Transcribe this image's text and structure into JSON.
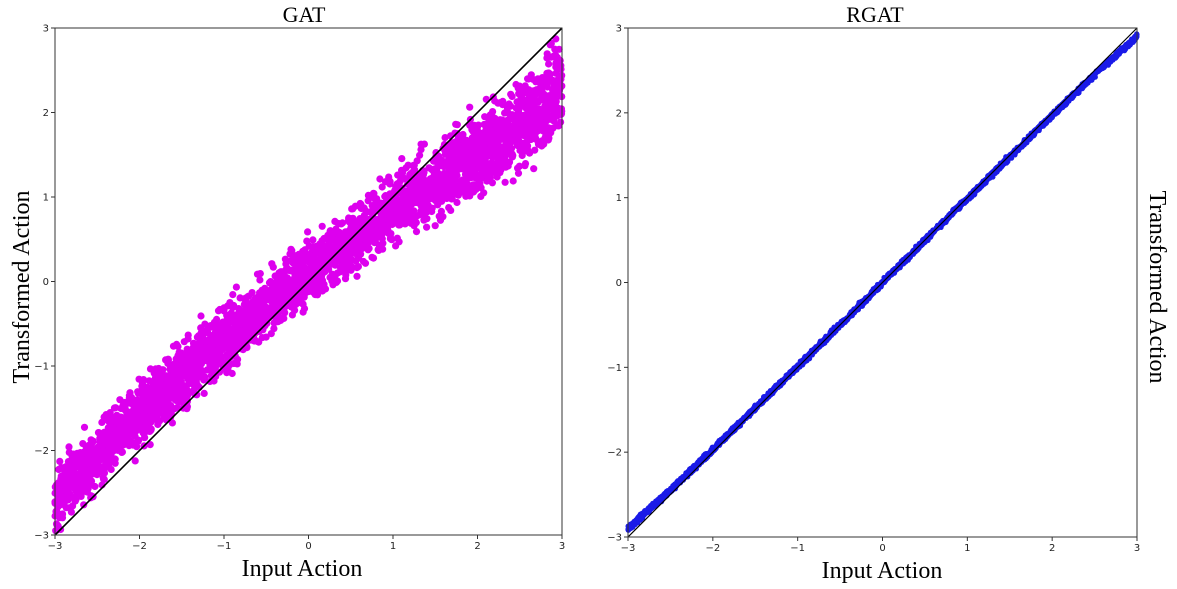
{
  "colors": {
    "gat_points": "#dd00ee",
    "rgat_points": "#1a1ae8",
    "identity_line": "#000000"
  },
  "panels": [
    {
      "key": "gat",
      "title": "GAT",
      "xlabel": "Input Action",
      "ylabel": "Transformed Action",
      "ylabel_side": "left"
    },
    {
      "key": "rgat",
      "title": "RGAT",
      "xlabel": "Input Action",
      "ylabel": "Transformed Action",
      "ylabel_side": "right"
    }
  ],
  "chart_data": [
    {
      "type": "scatter",
      "title": "GAT",
      "xlabel": "Input Action",
      "ylabel": "Transformed Action",
      "xlim": [
        -3,
        3
      ],
      "ylim": [
        -3,
        3
      ],
      "xticks": [
        "−3",
        "−2",
        "−1",
        "0",
        "1",
        "2",
        "3"
      ],
      "yticks": [
        "−3",
        "−2",
        "−1",
        "0",
        "1",
        "2",
        "3"
      ],
      "reference_line": {
        "x": [
          -3,
          3
        ],
        "y": [
          -3,
          3
        ]
      },
      "grid": false,
      "x": [
        -3.0,
        -2.8,
        -2.6,
        -2.4,
        -2.2,
        -2.0,
        -1.8,
        -1.6,
        -1.4,
        -1.2,
        -1.0,
        -0.8,
        -0.6,
        -0.4,
        -0.2,
        0.0,
        0.2,
        0.4,
        0.6,
        0.8,
        1.0,
        1.2,
        1.4,
        1.6,
        1.8,
        2.0,
        2.2,
        2.4,
        2.6,
        2.8,
        3.0
      ],
      "y": [
        -2.6,
        -2.35,
        -2.2,
        -1.95,
        -1.75,
        -1.6,
        -1.4,
        -1.2,
        -1.05,
        -0.85,
        -0.7,
        -0.55,
        -0.35,
        -0.2,
        -0.05,
        0.1,
        0.25,
        0.4,
        0.55,
        0.7,
        0.85,
        1.0,
        1.1,
        1.25,
        1.4,
        1.5,
        1.65,
        1.8,
        1.95,
        2.1,
        2.3
      ],
      "y_spread": [
        0.45,
        0.45,
        0.45,
        0.45,
        0.45,
        0.45,
        0.45,
        0.45,
        0.45,
        0.45,
        0.45,
        0.45,
        0.45,
        0.45,
        0.45,
        0.45,
        0.45,
        0.45,
        0.45,
        0.45,
        0.45,
        0.5,
        0.5,
        0.55,
        0.55,
        0.6,
        0.6,
        0.65,
        0.65,
        0.7,
        0.75
      ]
    },
    {
      "type": "scatter",
      "title": "RGAT",
      "xlabel": "Input Action",
      "ylabel": "Transformed Action",
      "xlim": [
        -3,
        3
      ],
      "ylim": [
        -3,
        3
      ],
      "xticks": [
        "−3",
        "−2",
        "−1",
        "0",
        "1",
        "2",
        "3"
      ],
      "yticks": [
        "−3",
        "−2",
        "−1",
        "0",
        "1",
        "2",
        "3"
      ],
      "reference_line": {
        "x": [
          -3,
          3
        ],
        "y": [
          -3,
          3
        ]
      },
      "grid": false,
      "x": [
        -3.0,
        -2.5,
        -2.0,
        -1.5,
        -1.0,
        -0.5,
        0.0,
        0.5,
        1.0,
        1.5,
        2.0,
        2.5,
        3.0
      ],
      "y": [
        -2.9,
        -2.45,
        -1.97,
        -1.48,
        -0.99,
        -0.5,
        0.0,
        0.5,
        0.99,
        1.48,
        1.97,
        2.45,
        2.9
      ],
      "y_spread": [
        0.04,
        0.04,
        0.04,
        0.04,
        0.04,
        0.04,
        0.04,
        0.04,
        0.04,
        0.04,
        0.04,
        0.04,
        0.04
      ]
    }
  ]
}
